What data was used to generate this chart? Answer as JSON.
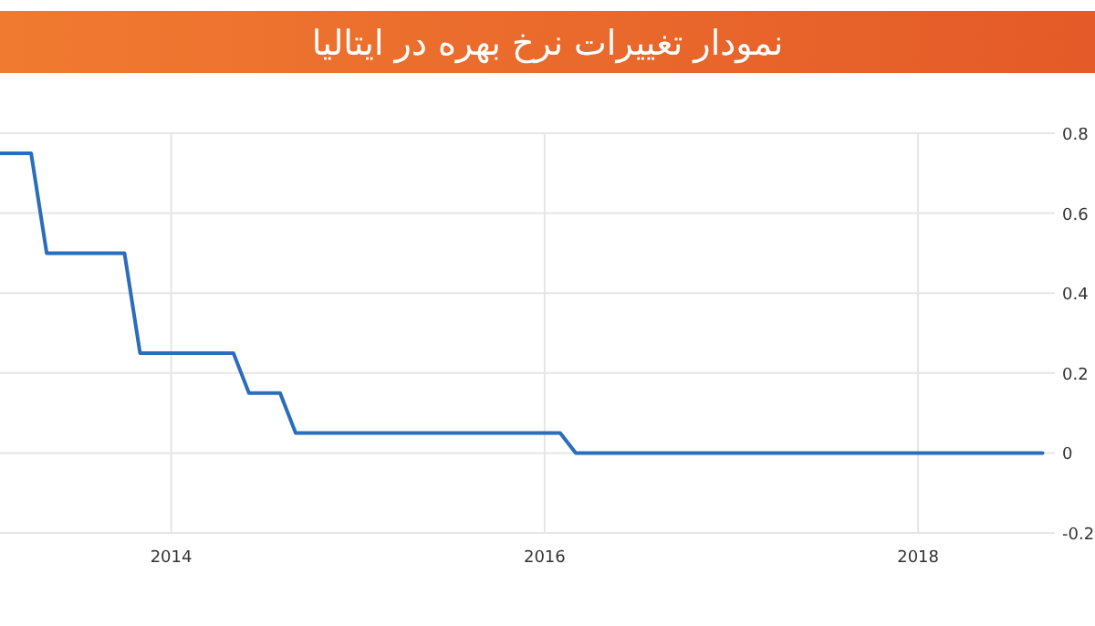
{
  "chart_data": {
    "type": "line",
    "title": "نمودار تغییرات نرخ بهره در ایتالیا",
    "x": [
      "2013-02",
      "2013-04",
      "2013-05",
      "2013-10",
      "2013-11",
      "2014-05",
      "2014-06",
      "2014-08",
      "2014-09",
      "2016-02",
      "2016-03",
      "2018-09"
    ],
    "series": [
      {
        "color": "#2a6ebb",
        "values": [
          0.75,
          0.75,
          0.5,
          0.5,
          0.25,
          0.25,
          0.15,
          0.15,
          0.05,
          0.05,
          0,
          0
        ]
      }
    ],
    "xlim": [
      "2013-02",
      "2018-09-25"
    ],
    "xticks": [
      {
        "value": "2014",
        "label": "2014"
      },
      {
        "value": "2016",
        "label": "2016"
      },
      {
        "value": "2018",
        "label": "2018"
      }
    ],
    "ylim": [
      -0.2,
      0.8
    ],
    "yticks": [
      -0.2,
      0,
      0.2,
      0.4,
      0.6,
      0.8
    ],
    "grid": true,
    "marker": "none",
    "line_style": "solid"
  }
}
